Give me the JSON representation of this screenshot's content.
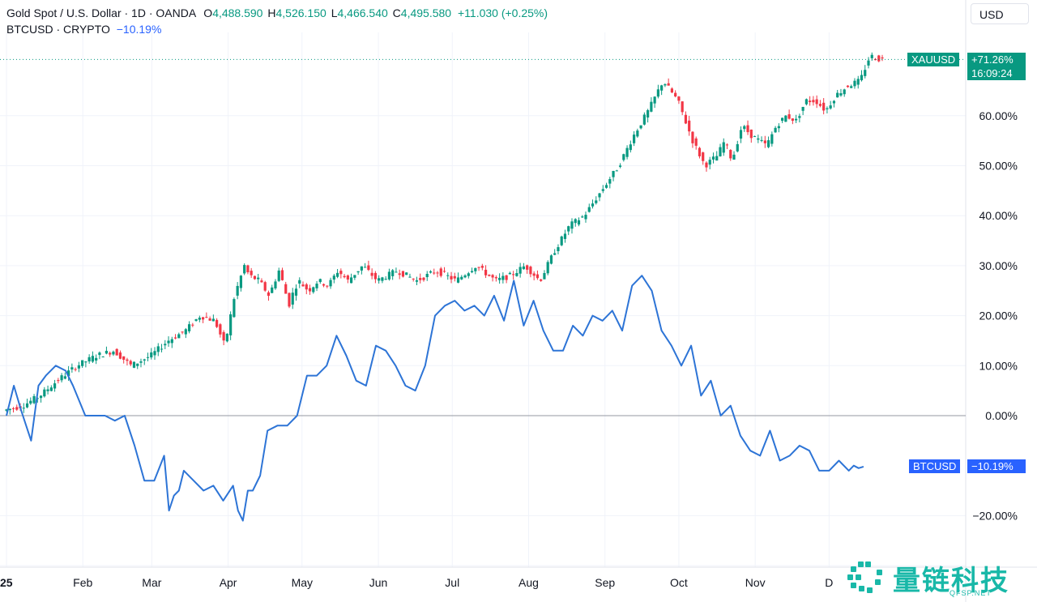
{
  "header": {
    "symbol_title": "Gold Spot / U.S. Dollar · 1D · OANDA",
    "o_label": "O",
    "o_value": "4,488.590",
    "h_label": "H",
    "h_value": "4,526.150",
    "l_label": "L",
    "l_value": "4,466.540",
    "c_label": "C",
    "c_value": "4,495.580",
    "change": "+11.030 (+0.25%)",
    "compare_symbol": "BTCUSD · CRYPTO",
    "compare_value": "−10.19%"
  },
  "toolbar": {
    "currency": "USD"
  },
  "badges": {
    "xau_name": "XAUUSD",
    "xau_value": "+71.26%",
    "xau_time": "16:09:24",
    "btc_name": "BTCUSD",
    "btc_value": "−10.19%"
  },
  "watermark": {
    "text": "量链科技",
    "sub": "QFSP.NET"
  },
  "colors": {
    "up": "#089981",
    "down": "#f23645",
    "btc_line": "#2d74d6",
    "grid": "#f0f3fa"
  },
  "chart_data": {
    "type": "line",
    "y_unit": "%",
    "ylim": [
      -30,
      72
    ],
    "x_range": [
      0,
      360
    ],
    "grid": true,
    "x_ticks": [
      {
        "label": "25",
        "x": 0
      },
      {
        "label": "Feb",
        "x": 31
      },
      {
        "label": "Mar",
        "x": 59
      },
      {
        "label": "Apr",
        "x": 90
      },
      {
        "label": "May",
        "x": 120
      },
      {
        "label": "Jun",
        "x": 151
      },
      {
        "label": "Jul",
        "x": 181
      },
      {
        "label": "Aug",
        "x": 212
      },
      {
        "label": "Sep",
        "x": 243
      },
      {
        "label": "Oct",
        "x": 273
      },
      {
        "label": "Nov",
        "x": 304
      },
      {
        "label": "D",
        "x": 334
      }
    ],
    "y_ticks": [
      {
        "label": "−20.00%",
        "v": -20
      },
      {
        "label": "0.00%",
        "v": 0
      },
      {
        "label": "10.00%",
        "v": 10
      },
      {
        "label": "20.00%",
        "v": 20
      },
      {
        "label": "30.00%",
        "v": 30
      },
      {
        "label": "40.00%",
        "v": 40
      },
      {
        "label": "50.00%",
        "v": 50
      },
      {
        "label": "60.00%",
        "v": 60
      }
    ],
    "series": [
      {
        "name": "XAUUSD",
        "style": "candlestick",
        "last_value": 71.26,
        "x": [
          0,
          8,
          15,
          22,
          30,
          38,
          45,
          52,
          60,
          67,
          74,
          80,
          86,
          90,
          94,
          98,
          100,
          104,
          108,
          112,
          114,
          116,
          118,
          120,
          124,
          128,
          132,
          136,
          140,
          146,
          152,
          160,
          168,
          176,
          184,
          192,
          200,
          206,
          212,
          218,
          224,
          230,
          236,
          243,
          250,
          256,
          262,
          268,
          274,
          280,
          285,
          290,
          293,
          296,
          300,
          304,
          310,
          314,
          318,
          322,
          326,
          330,
          334,
          338,
          343,
          348,
          352,
          356
        ],
        "values": [
          1,
          2,
          4,
          7,
          10,
          12,
          13,
          10,
          12,
          15,
          17,
          20,
          19,
          14,
          24,
          30,
          28,
          27,
          24,
          29,
          26,
          22,
          25,
          27,
          25,
          27,
          26,
          29,
          27,
          30,
          27,
          29,
          27,
          29,
          27,
          30,
          27,
          28,
          30,
          27,
          33,
          38,
          40,
          45,
          50,
          56,
          61,
          67,
          63,
          55,
          50,
          52,
          55,
          51,
          58,
          56,
          54,
          58,
          60,
          59,
          63,
          63,
          61,
          64,
          66,
          67,
          72,
          71.26
        ]
      },
      {
        "name": "BTCUSD",
        "style": "line",
        "last_value": -10.19,
        "x": [
          0,
          3,
          6,
          10,
          13,
          16,
          20,
          24,
          27,
          32,
          36,
          40,
          44,
          48,
          52,
          56,
          60,
          64,
          66,
          68,
          70,
          72,
          76,
          80,
          84,
          88,
          92,
          94,
          96,
          98,
          100,
          103,
          106,
          110,
          114,
          118,
          122,
          126,
          130,
          134,
          138,
          142,
          146,
          150,
          154,
          158,
          162,
          166,
          170,
          174,
          178,
          182,
          186,
          190,
          194,
          198,
          202,
          206,
          210,
          214,
          218,
          222,
          226,
          230,
          234,
          238,
          242,
          246,
          250,
          254,
          258,
          262,
          266,
          270,
          274,
          278,
          282,
          286,
          290,
          294,
          298,
          302,
          306,
          310,
          314,
          318,
          322,
          326,
          330,
          334,
          338,
          342,
          344,
          346,
          348
        ],
        "values": [
          0,
          6,
          1,
          -5,
          6,
          8,
          10,
          9,
          6,
          0,
          0,
          0,
          -1,
          0,
          -6,
          -13,
          -13,
          -8,
          -19,
          -16,
          -15,
          -11,
          -13,
          -15,
          -14,
          -17,
          -14,
          -19,
          -21,
          -15,
          -15,
          -12,
          -3,
          -2,
          -2,
          0,
          8,
          8,
          10,
          16,
          12,
          7,
          6,
          14,
          13,
          10,
          6,
          5,
          10,
          20,
          22,
          23,
          21,
          22,
          20,
          24,
          19,
          27,
          18,
          23,
          17,
          13,
          13,
          18,
          16,
          20,
          19,
          21,
          17,
          26,
          28,
          25,
          17,
          14,
          10,
          14,
          4,
          7,
          0,
          2,
          -4,
          -7,
          -8,
          -3,
          -9,
          -8,
          -6,
          -7,
          -11,
          -11,
          -9,
          -11,
          -10,
          -10.5,
          -10.19
        ]
      }
    ]
  }
}
